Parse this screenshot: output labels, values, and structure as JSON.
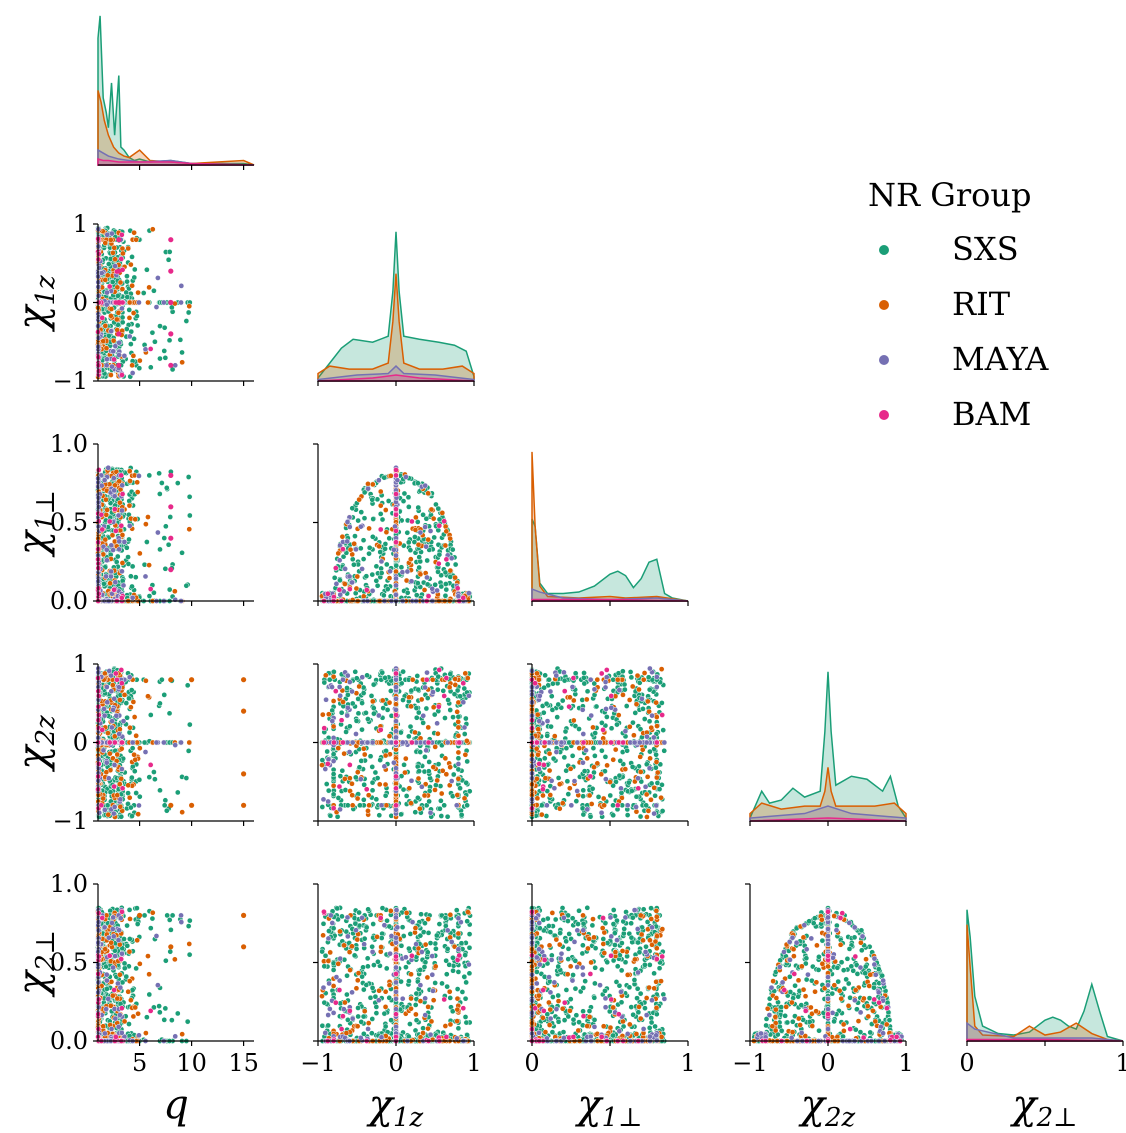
{
  "chart_data": {
    "type": "scatter",
    "subtype": "pairplot-corner",
    "variables": [
      {
        "key": "q",
        "main": "q",
        "sub": "",
        "range": [
          1,
          16
        ],
        "ticks": [
          5,
          10,
          15
        ],
        "tick_labels": [
          "5",
          "10",
          "15"
        ]
      },
      {
        "key": "chi1z",
        "main": "χ",
        "sub": "1z",
        "range": [
          -1,
          1
        ],
        "ticks": [
          -1,
          0,
          1
        ],
        "tick_labels": [
          "−1",
          "0",
          "1"
        ]
      },
      {
        "key": "chi1perp",
        "main": "χ",
        "sub": "1⊥",
        "range": [
          0,
          1
        ],
        "ticks": [
          0,
          0.5,
          1
        ],
        "tick_labels_y": [
          "0.0",
          "0.5",
          "1.0"
        ],
        "tick_labels_x": [
          "0",
          "",
          "1"
        ]
      },
      {
        "key": "chi2z",
        "main": "χ",
        "sub": "2z",
        "range": [
          -1,
          1
        ],
        "ticks": [
          -1,
          0,
          1
        ],
        "tick_labels": [
          "−1",
          "0",
          "1"
        ]
      },
      {
        "key": "chi2perp",
        "main": "χ",
        "sub": "2⊥",
        "range": [
          0,
          1
        ],
        "ticks": [
          0,
          0.5,
          1
        ],
        "tick_labels_y": [
          "0.0",
          "0.5",
          "1.0"
        ],
        "tick_labels_x": [
          "0",
          "",
          "1"
        ]
      }
    ],
    "legend": {
      "title": "NR Group",
      "placement": "right",
      "entries": [
        {
          "name": "SXS",
          "color": "#1b9e77"
        },
        {
          "name": "RIT",
          "color": "#d95f02"
        },
        {
          "name": "MAYA",
          "color": "#7570b3"
        },
        {
          "name": "BAM",
          "color": "#e7298a"
        }
      ]
    },
    "diagonal": "kde",
    "marginal_kde": {
      "q": [
        {
          "group": "SXS",
          "x": [
            1,
            1.2,
            1.5,
            1.8,
            2,
            2.3,
            2.6,
            3,
            3.2,
            3.5,
            3.8,
            4,
            4.5,
            5,
            6,
            8,
            10,
            15,
            16
          ],
          "y": [
            0.85,
            1.0,
            0.45,
            0.35,
            0.25,
            0.55,
            0.2,
            0.6,
            0.12,
            0.1,
            0.07,
            0.05,
            0.03,
            0.04,
            0.02,
            0.03,
            0.01,
            0.01,
            0
          ]
        },
        {
          "group": "RIT",
          "x": [
            1,
            1.3,
            1.6,
            2,
            2.5,
            3,
            3.5,
            4,
            5,
            6,
            8,
            10,
            15,
            16
          ],
          "y": [
            0.5,
            0.42,
            0.3,
            0.2,
            0.12,
            0.08,
            0.06,
            0.05,
            0.1,
            0.03,
            0.02,
            0.01,
            0.03,
            0
          ]
        },
        {
          "group": "MAYA",
          "x": [
            1,
            1.5,
            2,
            2.5,
            3,
            4,
            5,
            8,
            10,
            16
          ],
          "y": [
            0.1,
            0.08,
            0.06,
            0.05,
            0.04,
            0.03,
            0.02,
            0.03,
            0.01,
            0
          ]
        },
        {
          "group": "BAM",
          "x": [
            1,
            1.5,
            2,
            3,
            5,
            8,
            10,
            16
          ],
          "y": [
            0.04,
            0.03,
            0.03,
            0.02,
            0.02,
            0.02,
            0.01,
            0
          ]
        }
      ],
      "chi1z": [
        {
          "group": "SXS",
          "x": [
            -1,
            -0.85,
            -0.7,
            -0.55,
            -0.3,
            -0.1,
            -0.04,
            0,
            0.04,
            0.1,
            0.3,
            0.55,
            0.75,
            0.9,
            1
          ],
          "y": [
            0.02,
            0.12,
            0.22,
            0.28,
            0.26,
            0.3,
            0.6,
            1.0,
            0.6,
            0.3,
            0.28,
            0.26,
            0.24,
            0.2,
            0.03
          ]
        },
        {
          "group": "RIT",
          "x": [
            -1,
            -0.85,
            -0.6,
            -0.3,
            -0.1,
            -0.04,
            0,
            0.04,
            0.1,
            0.3,
            0.6,
            0.85,
            1
          ],
          "y": [
            0.05,
            0.1,
            0.08,
            0.08,
            0.12,
            0.4,
            0.72,
            0.4,
            0.12,
            0.08,
            0.08,
            0.1,
            0.05
          ]
        },
        {
          "group": "MAYA",
          "x": [
            -1,
            -0.5,
            -0.1,
            0,
            0.1,
            0.5,
            1
          ],
          "y": [
            0.01,
            0.04,
            0.05,
            0.1,
            0.05,
            0.04,
            0.01
          ]
        },
        {
          "group": "BAM",
          "x": [
            -1,
            -0.3,
            0,
            0.3,
            1
          ],
          "y": [
            0,
            0.02,
            0.04,
            0.02,
            0
          ]
        }
      ],
      "chi1perp": [
        {
          "group": "SXS",
          "x": [
            0,
            0.02,
            0.05,
            0.1,
            0.2,
            0.3,
            0.4,
            0.5,
            0.55,
            0.6,
            0.65,
            0.7,
            0.75,
            0.8,
            0.85,
            0.9,
            1
          ],
          "y": [
            0.55,
            0.5,
            0.12,
            0.05,
            0.05,
            0.06,
            0.1,
            0.18,
            0.2,
            0.17,
            0.09,
            0.15,
            0.26,
            0.28,
            0.05,
            0.02,
            0
          ]
        },
        {
          "group": "RIT",
          "x": [
            0,
            0.02,
            0.05,
            0.1,
            0.3,
            0.5,
            0.6,
            0.8,
            1
          ],
          "y": [
            1.0,
            0.5,
            0.1,
            0.03,
            0.02,
            0.03,
            0.02,
            0.03,
            0
          ]
        },
        {
          "group": "MAYA",
          "x": [
            0,
            0.05,
            0.2,
            0.5,
            0.8,
            1
          ],
          "y": [
            0.08,
            0.06,
            0.02,
            0.01,
            0.02,
            0
          ]
        },
        {
          "group": "BAM",
          "x": [
            0,
            0.1,
            0.5,
            1
          ],
          "y": [
            0.01,
            0.01,
            0.01,
            0
          ]
        }
      ],
      "chi2z": [
        {
          "group": "SXS",
          "x": [
            -1,
            -0.85,
            -0.75,
            -0.6,
            -0.45,
            -0.3,
            -0.1,
            -0.04,
            0,
            0.04,
            0.1,
            0.3,
            0.5,
            0.7,
            0.8,
            0.9,
            1
          ],
          "y": [
            0.02,
            0.2,
            0.12,
            0.14,
            0.22,
            0.16,
            0.2,
            0.6,
            1.0,
            0.6,
            0.24,
            0.3,
            0.28,
            0.2,
            0.3,
            0.1,
            0.02
          ]
        },
        {
          "group": "RIT",
          "x": [
            -1,
            -0.85,
            -0.6,
            -0.3,
            -0.1,
            -0.04,
            0,
            0.04,
            0.1,
            0.3,
            0.6,
            0.85,
            1
          ],
          "y": [
            0.05,
            0.12,
            0.08,
            0.1,
            0.1,
            0.2,
            0.36,
            0.2,
            0.1,
            0.1,
            0.1,
            0.12,
            0.05
          ]
        },
        {
          "group": "MAYA",
          "x": [
            -1,
            -0.3,
            0,
            0.3,
            1
          ],
          "y": [
            0.02,
            0.05,
            0.1,
            0.05,
            0.02
          ]
        },
        {
          "group": "BAM",
          "x": [
            -1,
            0,
            1
          ],
          "y": [
            0,
            0.02,
            0
          ]
        }
      ],
      "chi2perp": [
        {
          "group": "SXS",
          "x": [
            0,
            0.02,
            0.05,
            0.1,
            0.2,
            0.3,
            0.4,
            0.45,
            0.5,
            0.55,
            0.6,
            0.65,
            0.7,
            0.75,
            0.8,
            0.85,
            0.9,
            1
          ],
          "y": [
            0.88,
            0.7,
            0.3,
            0.1,
            0.05,
            0.04,
            0.06,
            0.1,
            0.14,
            0.16,
            0.14,
            0.1,
            0.08,
            0.2,
            0.38,
            0.2,
            0.03,
            0
          ]
        },
        {
          "group": "RIT",
          "x": [
            0,
            0.02,
            0.05,
            0.1,
            0.3,
            0.4,
            0.5,
            0.6,
            0.7,
            0.8,
            0.9,
            1
          ],
          "y": [
            0.78,
            0.5,
            0.1,
            0.04,
            0.03,
            0.1,
            0.04,
            0.06,
            0.12,
            0.05,
            0.01,
            0
          ]
        },
        {
          "group": "MAYA",
          "x": [
            0,
            0.05,
            0.3,
            0.6,
            0.8,
            1
          ],
          "y": [
            0.12,
            0.08,
            0.02,
            0.02,
            0.02,
            0
          ]
        },
        {
          "group": "BAM",
          "x": [
            0,
            0.5,
            1
          ],
          "y": [
            0.01,
            0.01,
            0
          ]
        }
      ]
    },
    "scatter_note_points": {
      "q_vs_chi1z_bam": [
        [
          3,
          0.8
        ],
        [
          3,
          0.4
        ],
        [
          3,
          0
        ],
        [
          3,
          -0.4
        ],
        [
          3,
          -0.8
        ],
        [
          8,
          0.8
        ],
        [
          8,
          0.4
        ],
        [
          8,
          0
        ],
        [
          8,
          -0.4
        ],
        [
          8,
          -0.8
        ]
      ],
      "q_vs_chi1perp_bam": [
        [
          8,
          0.8
        ],
        [
          8,
          0.6
        ],
        [
          8,
          0.4
        ],
        [
          8,
          0.2
        ]
      ],
      "q_vs_chi2z_rit_outliers": [
        [
          15,
          0.8
        ],
        [
          15,
          0.4
        ],
        [
          15,
          -0.4
        ],
        [
          15,
          -0.8
        ],
        [
          10,
          0.8
        ],
        [
          10,
          -0.8
        ],
        [
          8,
          0.8
        ],
        [
          8,
          -0.8
        ]
      ],
      "q_vs_chi2perp_rit_outliers": [
        [
          15,
          0.8
        ],
        [
          15,
          0.6
        ],
        [
          8,
          0.6
        ],
        [
          5,
          0.8
        ]
      ]
    }
  }
}
